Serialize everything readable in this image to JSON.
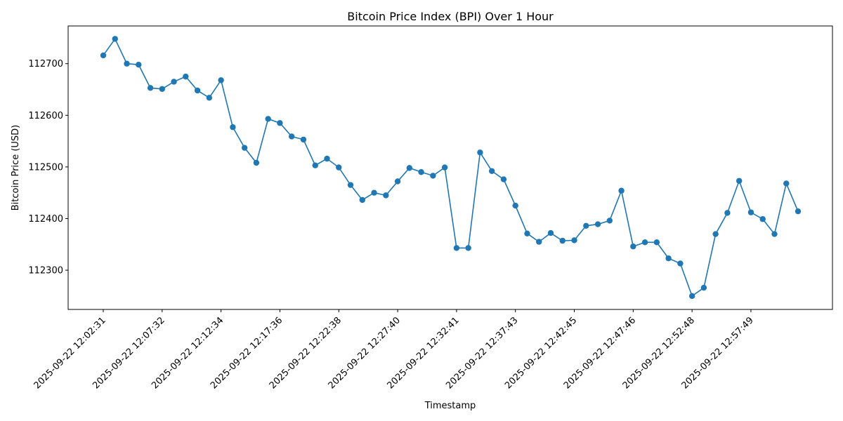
{
  "chart_data": {
    "type": "line",
    "title": "Bitcoin Price Index (BPI) Over 1 Hour",
    "xlabel": "Timestamp",
    "ylabel": "Bitcoin Price (USD)",
    "ylim": [
      112224,
      112773
    ],
    "yticks": [
      112300,
      112400,
      112500,
      112600,
      112700
    ],
    "xtick_labels": [
      "2025-09-22 12:02:31",
      "2025-09-22 12:07:32",
      "2025-09-22 12:12:34",
      "2025-09-22 12:17:36",
      "2025-09-22 12:22:38",
      "2025-09-22 12:27:40",
      "2025-09-22 12:32:41",
      "2025-09-22 12:37:43",
      "2025-09-22 12:42:45",
      "2025-09-22 12:47:46",
      "2025-09-22 12:52:48",
      "2025-09-22 12:57:49"
    ],
    "tick_every": 5,
    "grid": false,
    "color": "#1f77b4",
    "series": [
      {
        "values": [
          112716,
          112748,
          112700,
          112698,
          112653,
          112651,
          112665,
          112675,
          112648,
          112634,
          112668,
          112577,
          112537,
          112508,
          112593,
          112585,
          112559,
          112553,
          112503,
          112516,
          112499,
          112465,
          112436,
          112450,
          112445,
          112472,
          112498,
          112490,
          112483,
          112499,
          112343,
          112343,
          112528,
          112492,
          112476,
          112425,
          112371,
          112355,
          112372,
          112357,
          112358,
          112386,
          112389,
          112396,
          112454,
          112346,
          112354,
          112354,
          112323,
          112313,
          112250,
          112266,
          112370,
          112411,
          112473,
          112412,
          112399,
          112370,
          112468,
          112414
        ]
      }
    ]
  }
}
